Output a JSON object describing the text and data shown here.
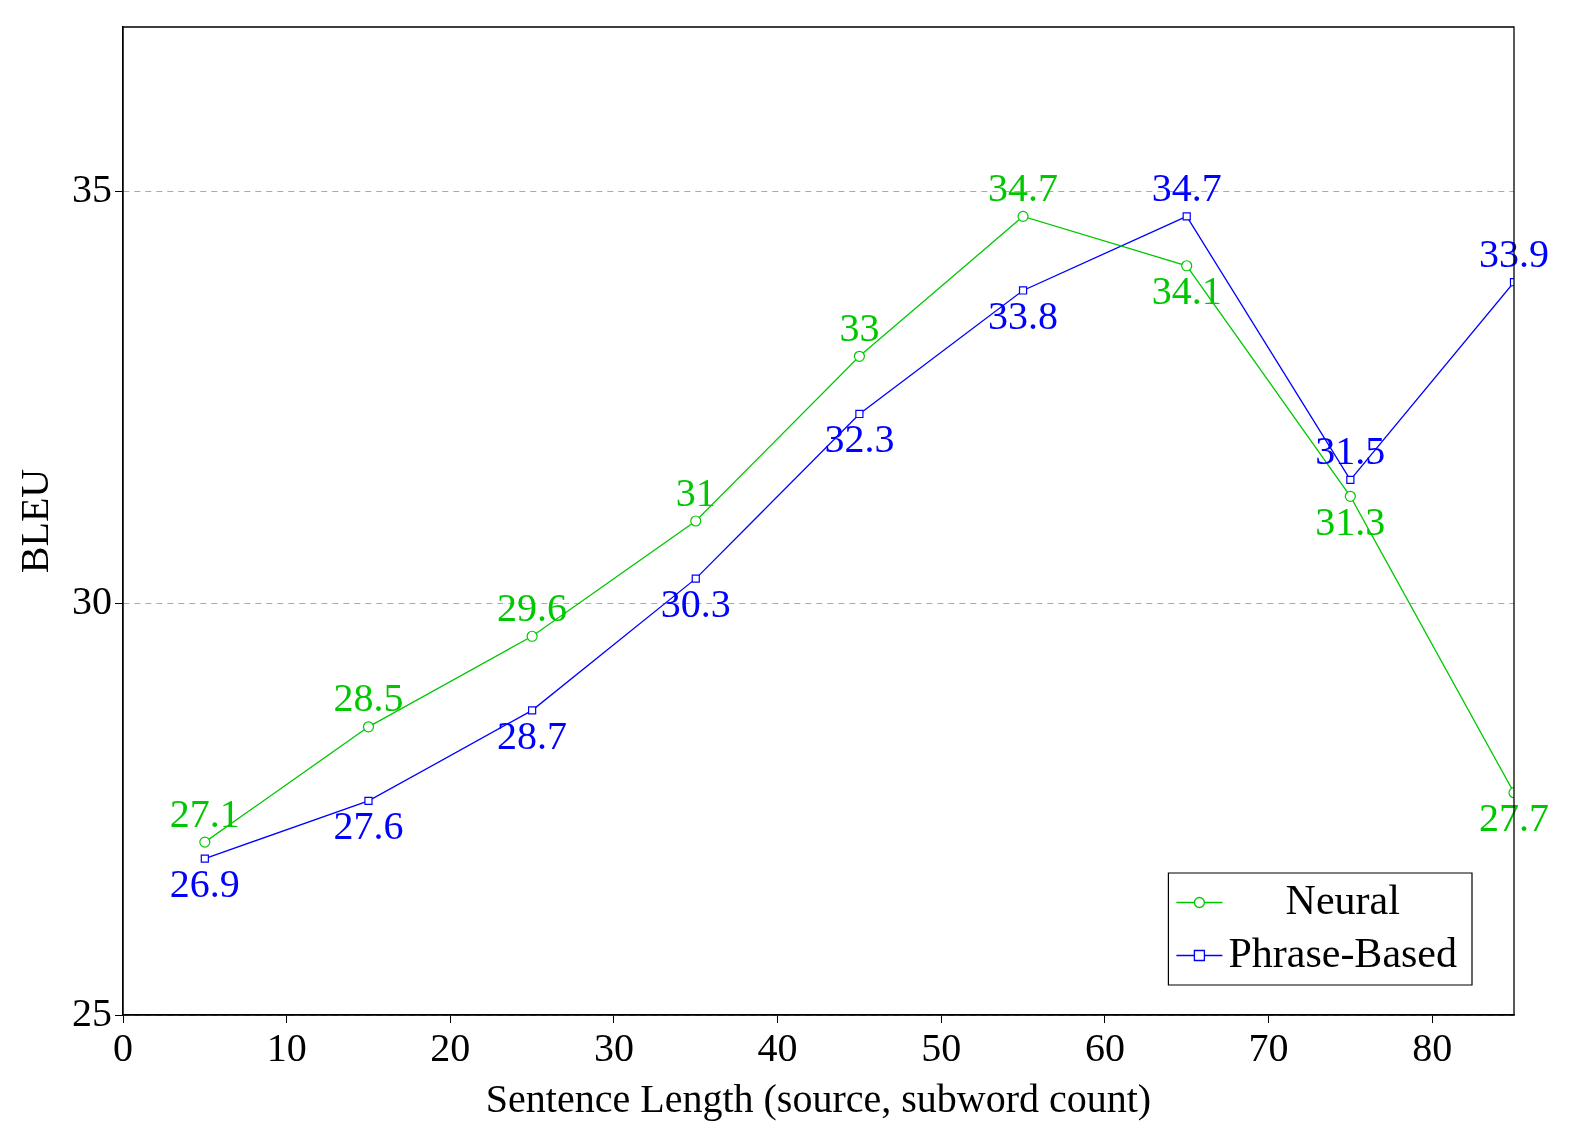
{
  "chart_data": {
    "type": "line",
    "xlabel": "Sentence Length (source, subword count)",
    "ylabel": "BLEU",
    "x": [
      5,
      15,
      25,
      35,
      45,
      55,
      65,
      75,
      85
    ],
    "series": [
      {
        "name": "Neural",
        "color": "#00c800",
        "marker": "circle",
        "values": [
          27.1,
          28.5,
          29.6,
          31,
          33,
          34.7,
          34.1,
          31.3,
          27.7
        ]
      },
      {
        "name": "Phrase-Based",
        "color": "#0000ff",
        "marker": "square",
        "values": [
          26.9,
          27.6,
          28.7,
          30.3,
          32.3,
          33.8,
          34.7,
          31.5,
          33.9
        ]
      }
    ],
    "xlim": [
      0,
      85
    ],
    "xticks": [
      0,
      10,
      20,
      30,
      40,
      50,
      60,
      70,
      80
    ],
    "ylim": [
      25,
      37
    ],
    "yticks": [
      25,
      30,
      35
    ],
    "grid": "y",
    "legend": "bottom right",
    "data_labels": true,
    "line_style": "solid"
  }
}
